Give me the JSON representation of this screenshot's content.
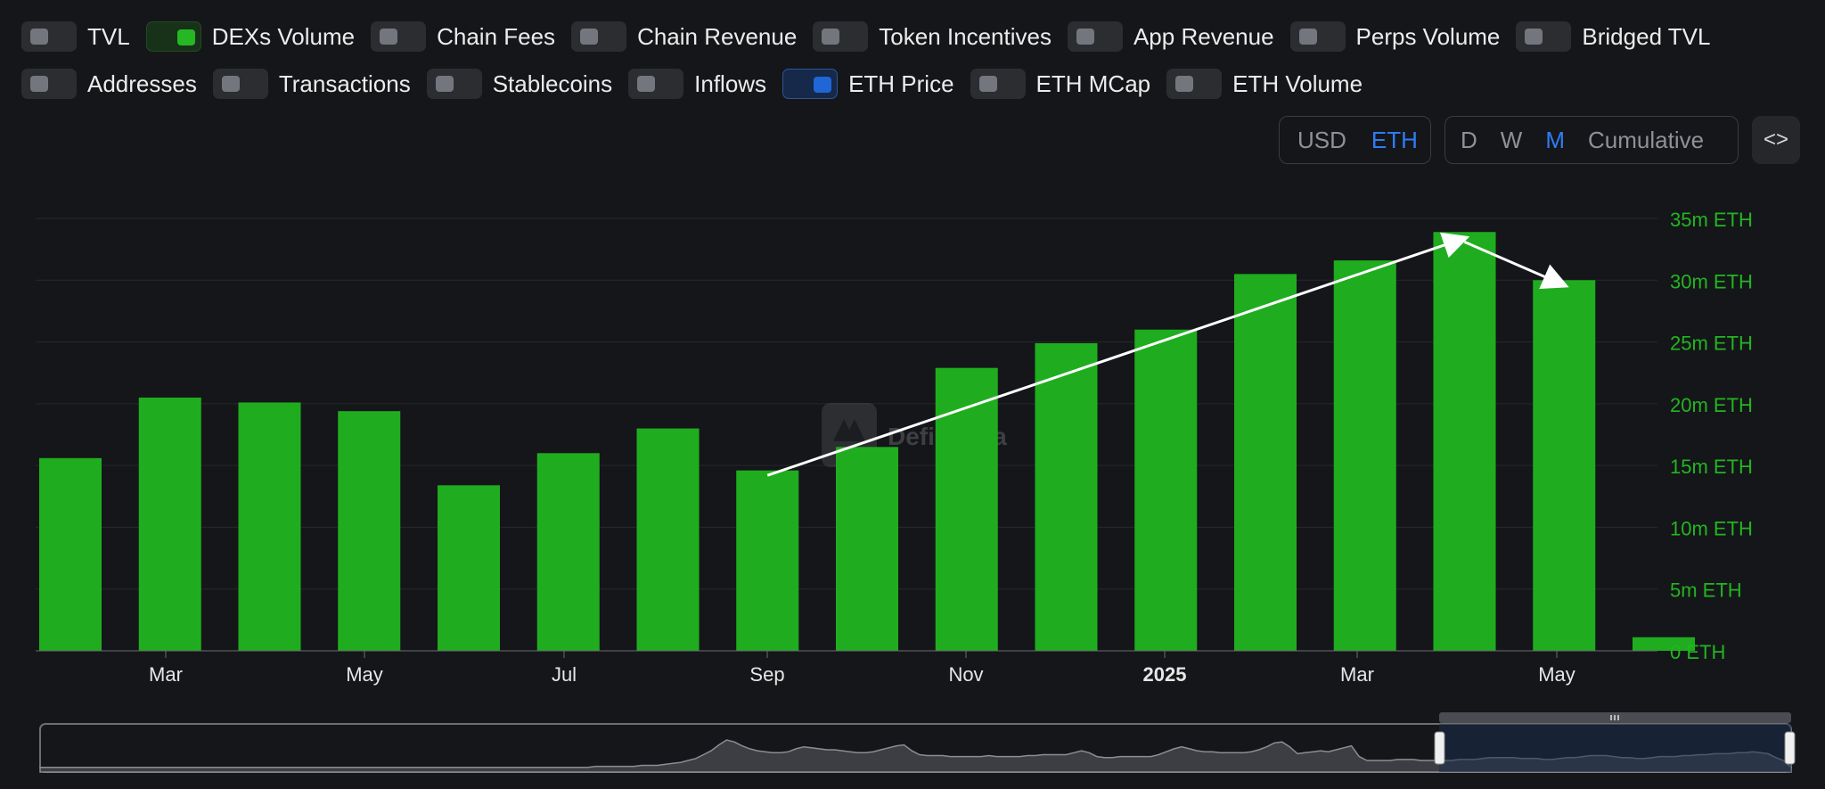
{
  "toggles_row1": [
    {
      "label": "TVL",
      "state": "off"
    },
    {
      "label": "DEXs Volume",
      "state": "on-green"
    },
    {
      "label": "Chain Fees",
      "state": "off"
    },
    {
      "label": "Chain Revenue",
      "state": "off"
    },
    {
      "label": "Token Incentives",
      "state": "off"
    },
    {
      "label": "App Revenue",
      "state": "off"
    },
    {
      "label": "Perps Volume",
      "state": "off"
    },
    {
      "label": "Bridged TVL",
      "state": "off"
    }
  ],
  "toggles_row2": [
    {
      "label": "Addresses",
      "state": "off"
    },
    {
      "label": "Transactions",
      "state": "off"
    },
    {
      "label": "Stablecoins",
      "state": "off"
    },
    {
      "label": "Inflows",
      "state": "off"
    },
    {
      "label": "ETH Price",
      "state": "on-blue"
    },
    {
      "label": "ETH MCap",
      "state": "off"
    },
    {
      "label": "ETH Volume",
      "state": "off"
    }
  ],
  "currency": {
    "usd": "USD",
    "eth": "ETH",
    "selected": "ETH"
  },
  "period": {
    "d": "D",
    "w": "W",
    "m": "M",
    "cumulative": "Cumulative",
    "selected": "M"
  },
  "embed_label": "<>",
  "watermark": "DefiLlama",
  "colors": {
    "bar": "#1fad1f",
    "axis_right": "#22b522",
    "active": "#2f7cf6",
    "navigator_line": "#2f5fb0"
  },
  "chart_data": {
    "type": "bar",
    "series": [
      {
        "values": [
          15.6,
          20.5,
          20.1,
          19.4,
          13.4,
          16.0,
          18.0,
          14.6,
          16.5,
          22.9,
          24.9,
          26.0,
          30.5,
          31.6,
          33.9,
          30.0,
          1.1
        ]
      }
    ],
    "x_tick_labels": [
      "Mar",
      "May",
      "Jul",
      "Sep",
      "Nov",
      "2025",
      "Mar",
      "May"
    ],
    "bold_tick": "2025",
    "y_ticks": [
      "0 ETH",
      "5m ETH",
      "10m ETH",
      "15m ETH",
      "20m ETH",
      "25m ETH",
      "30m ETH",
      "35m ETH"
    ],
    "ylim": [
      0,
      35
    ],
    "y_unit": "m ETH",
    "grid": true,
    "y_axis_side": "right",
    "annotations": [
      {
        "type": "arrow",
        "from_bar": 7,
        "from_value": 14.2,
        "to_bar": 14,
        "to_value": 33.4
      },
      {
        "type": "arrow",
        "from_bar": 14,
        "from_value": 33.1,
        "to_bar": 15,
        "to_value": 29.6
      }
    ],
    "navigator": {
      "values": [
        3,
        3,
        3,
        3,
        3,
        3,
        3,
        3,
        3,
        3,
        3,
        3,
        3,
        3,
        3,
        3,
        3,
        3,
        3,
        3,
        3,
        3,
        3,
        3,
        3,
        3,
        3,
        3,
        3,
        3,
        3,
        3,
        3,
        3,
        3,
        3,
        3,
        3,
        3,
        3,
        3,
        3,
        3,
        3,
        3,
        3,
        3,
        3,
        3,
        3,
        3,
        3,
        3,
        3,
        3,
        3,
        3,
        3,
        3,
        3,
        3,
        3,
        3,
        3,
        3,
        3,
        3,
        3,
        3,
        3,
        3,
        3,
        4,
        4,
        4,
        4,
        4,
        4,
        5,
        5,
        5,
        6,
        7,
        8,
        10,
        12,
        16,
        20,
        26,
        31,
        29,
        25,
        22,
        20,
        19,
        18,
        18,
        19,
        22,
        24,
        23,
        22,
        21,
        21,
        20,
        19,
        18,
        18,
        19,
        21,
        23,
        25,
        26,
        20,
        16,
        15,
        15,
        15,
        14,
        14,
        14,
        14,
        14,
        15,
        14,
        14,
        14,
        14,
        15,
        15,
        16,
        16,
        16,
        16,
        18,
        20,
        18,
        14,
        13,
        13,
        14,
        14,
        14,
        14,
        14,
        16,
        19,
        22,
        24,
        22,
        20,
        19,
        19,
        18,
        18,
        18,
        18,
        19,
        21,
        24,
        28,
        29,
        24,
        17,
        18,
        19,
        20,
        19,
        21,
        23,
        25,
        14,
        10,
        10,
        10,
        10,
        11,
        11,
        11,
        10,
        10,
        10,
        10,
        10,
        11,
        11,
        11,
        12,
        13,
        13,
        13,
        13,
        12,
        12,
        12,
        11,
        11,
        12,
        13,
        13,
        14,
        15,
        15,
        15,
        14,
        13,
        13,
        12,
        12,
        13,
        14,
        14,
        14,
        15,
        15,
        16,
        16,
        17,
        17,
        17,
        18,
        18,
        19,
        18,
        17,
        13,
        10,
        3
      ]
    }
  }
}
